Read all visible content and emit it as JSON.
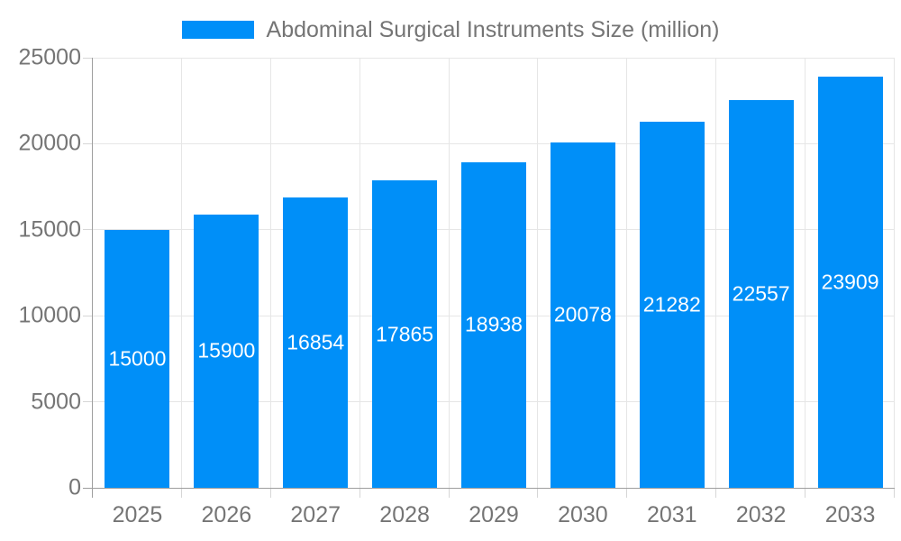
{
  "chart_data": {
    "type": "bar",
    "title": "Abdominal Surgical Instruments Size (million)",
    "categories": [
      "2025",
      "2026",
      "2027",
      "2028",
      "2029",
      "2030",
      "2031",
      "2032",
      "2033"
    ],
    "values": [
      15000,
      15900,
      16854,
      17865,
      18938,
      20078,
      21282,
      22557,
      23909
    ],
    "series_name": "Abdominal Surgical Instruments Size (million)",
    "xlabel": "",
    "ylabel": "",
    "ylim": [
      0,
      25000
    ],
    "ytick_step": 5000,
    "yticks": [
      0,
      5000,
      10000,
      15000,
      20000,
      25000
    ],
    "grid": "on",
    "legend_position": "top",
    "value_labels": "inside-center"
  },
  "colors": {
    "bar": "#008FF8",
    "grid": "#E6E6E6",
    "axis": "#9E9E9E",
    "tick_mark": "#D6D6D6",
    "text": "#757575",
    "value_label": "#FFFFFF",
    "background": "#FFFFFF"
  }
}
